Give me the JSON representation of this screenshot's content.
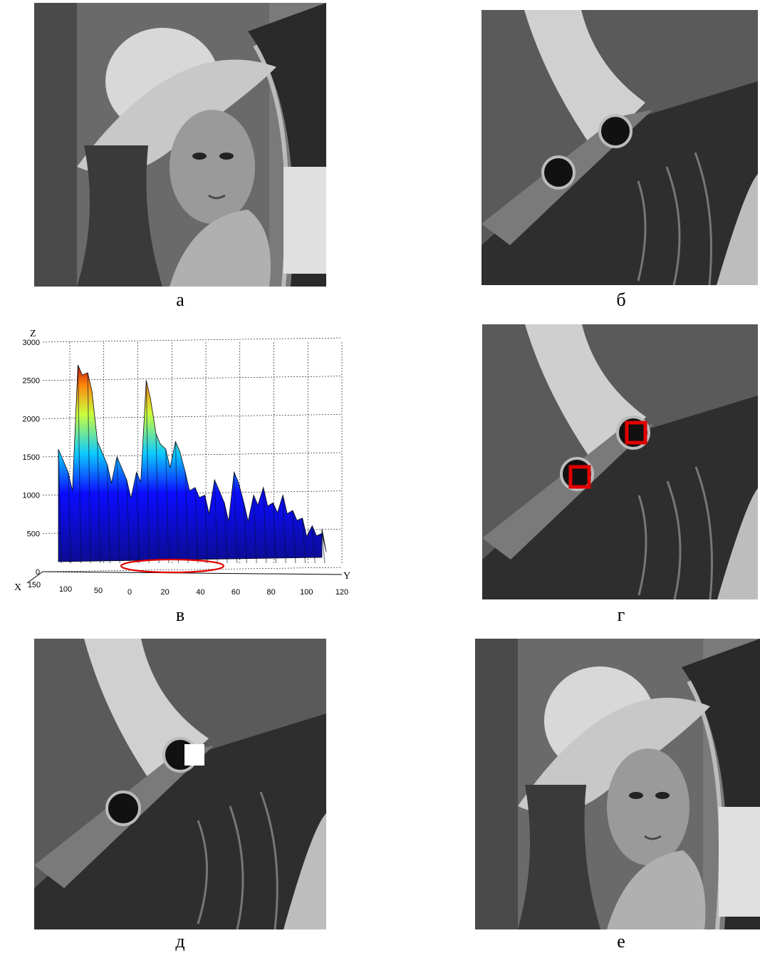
{
  "figure": {
    "captions": {
      "a": "а",
      "b": "б",
      "v": "в",
      "g": "г",
      "d": "д",
      "e": "е"
    }
  },
  "chart_data": {
    "type": "surface3d",
    "z_axis_label": "Z",
    "x_axis_label": "X",
    "y_axis_label": "Y",
    "z_ticks": [
      "0",
      "500",
      "1000",
      "1500",
      "2000",
      "2500",
      "3000"
    ],
    "x_ticks": [
      "150",
      "100",
      "50",
      "0"
    ],
    "y_ticks": [
      "20",
      "40",
      "60",
      "80",
      "100",
      "120"
    ],
    "zlim": [
      0,
      3000
    ],
    "xlim": [
      0,
      150
    ],
    "ylim": [
      0,
      120
    ],
    "grid": true,
    "colormap": [
      "#00008f",
      "#0000ff",
      "#00ffff",
      "#ffff00",
      "#ff0000",
      "#7f0000"
    ],
    "profile_y": [
      0,
      4,
      8,
      12,
      16,
      20,
      24,
      28,
      32,
      36,
      40,
      44,
      48,
      52,
      56,
      60,
      64,
      68,
      72,
      76,
      80,
      84,
      88,
      92,
      96,
      100,
      104,
      108
    ],
    "profile_z": [
      1600,
      1300,
      2700,
      2600,
      1700,
      1400,
      1500,
      1200,
      1300,
      2500,
      1800,
      1600,
      1700,
      1300,
      1100,
      1000,
      1200,
      900,
      1300,
      900,
      1000,
      1100,
      900,
      1000,
      800,
      700,
      600,
      500
    ],
    "highlight": {
      "shape": "ellipse",
      "color": "#e00000"
    }
  }
}
